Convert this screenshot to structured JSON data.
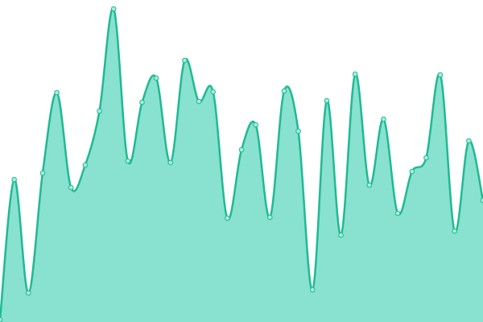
{
  "chart_data": {
    "type": "area",
    "values": [
      3,
      177,
      36,
      185,
      285,
      167,
      195,
      262,
      389,
      200,
      273,
      303,
      198,
      325,
      274,
      286,
      129,
      214,
      245,
      130,
      287,
      237,
      40,
      275,
      108,
      308,
      170,
      252,
      135,
      187,
      204,
      307,
      113,
      225,
      151
    ],
    "ylim": [
      0,
      400
    ],
    "color": "#1fba92",
    "fill": "#89e1cf",
    "marker_fill": "#a8ecdd",
    "smooth": true
  }
}
